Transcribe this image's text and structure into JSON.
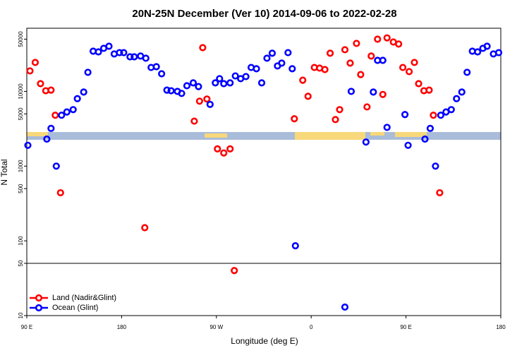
{
  "chart_data": {
    "type": "scatter",
    "title": "20N-25N December (Ver 10)   2014-09-06 to 2022-02-28",
    "x_label": "Longitude (deg E)",
    "y_label": "N Total",
    "xlim": [
      90,
      540
    ],
    "xticks": [
      {
        "value": 90,
        "label": "90 E"
      },
      {
        "value": 180,
        "label": "180"
      },
      {
        "value": 270,
        "label": "90 W"
      },
      {
        "value": 360,
        "label": "0"
      },
      {
        "value": 450,
        "label": "90 E"
      },
      {
        "value": 540,
        "label": "180"
      }
    ],
    "ylim": [
      10,
      70000
    ],
    "log_y": true,
    "yticks": [
      10,
      50,
      100,
      500,
      1000,
      5000,
      10000,
      50000
    ],
    "hline": 50,
    "legend": "lower left",
    "series": [
      {
        "name": "Land (Nadir&Glint)",
        "color": "#ff0000",
        "x": [
          93,
          98,
          103,
          108,
          113,
          117,
          122,
          202,
          249,
          254,
          257,
          261,
          271,
          277,
          283,
          287,
          344,
          352,
          357,
          363,
          368,
          373,
          378,
          383,
          387,
          392,
          397,
          403,
          407,
          413,
          417,
          423,
          428,
          432,
          438,
          443,
          447,
          453,
          458,
          462,
          467,
          472,
          476,
          482
        ],
        "values": [
          18800,
          24400,
          12700,
          10200,
          10400,
          4800,
          440,
          150,
          4000,
          7400,
          38500,
          7900,
          1700,
          1500,
          1700,
          40,
          4300,
          14100,
          8600,
          20900,
          20500,
          19600,
          32400,
          4200,
          5700,
          36100,
          23900,
          43900,
          16800,
          6200,
          29700,
          50000,
          9100,
          52000,
          45800,
          43000,
          20900,
          18400,
          24400,
          12700,
          10200,
          10400,
          4800,
          440
        ]
      },
      {
        "name": "Ocean (Glint)",
        "color": "#0000ff",
        "x": [
          91,
          109,
          113,
          118,
          123,
          128,
          134,
          138,
          144,
          148,
          153,
          158,
          163,
          168,
          173,
          178,
          182,
          188,
          192,
          198,
          203,
          208,
          213,
          218,
          223,
          227,
          233,
          237,
          242,
          248,
          253,
          264,
          269,
          273,
          277,
          283,
          288,
          293,
          298,
          303,
          308,
          313,
          318,
          323,
          328,
          332,
          338,
          342,
          345,
          392,
          398,
          412,
          419,
          423,
          428,
          432,
          449,
          452,
          468,
          473,
          478,
          483,
          488,
          493,
          498,
          503,
          508,
          513,
          518,
          523,
          527,
          533,
          538
        ],
        "values": [
          1900,
          2300,
          3200,
          1000,
          4800,
          5300,
          5700,
          8000,
          9800,
          18000,
          34500,
          33800,
          37700,
          40200,
          31700,
          33000,
          33000,
          29000,
          29000,
          29700,
          27800,
          20900,
          21400,
          17200,
          10400,
          10200,
          10000,
          9400,
          11900,
          13000,
          11600,
          6700,
          13000,
          14800,
          12700,
          13000,
          16100,
          14800,
          15800,
          20900,
          20100,
          13000,
          27800,
          32400,
          21900,
          23900,
          33000,
          20100,
          86,
          13,
          10000,
          2100,
          9800,
          26000,
          26000,
          3300,
          4900,
          1900,
          2300,
          3200,
          1000,
          4800,
          5300,
          5700,
          8000,
          9800,
          18000,
          34500,
          33800,
          37700,
          40200,
          31700,
          33000
        ]
      }
    ]
  }
}
